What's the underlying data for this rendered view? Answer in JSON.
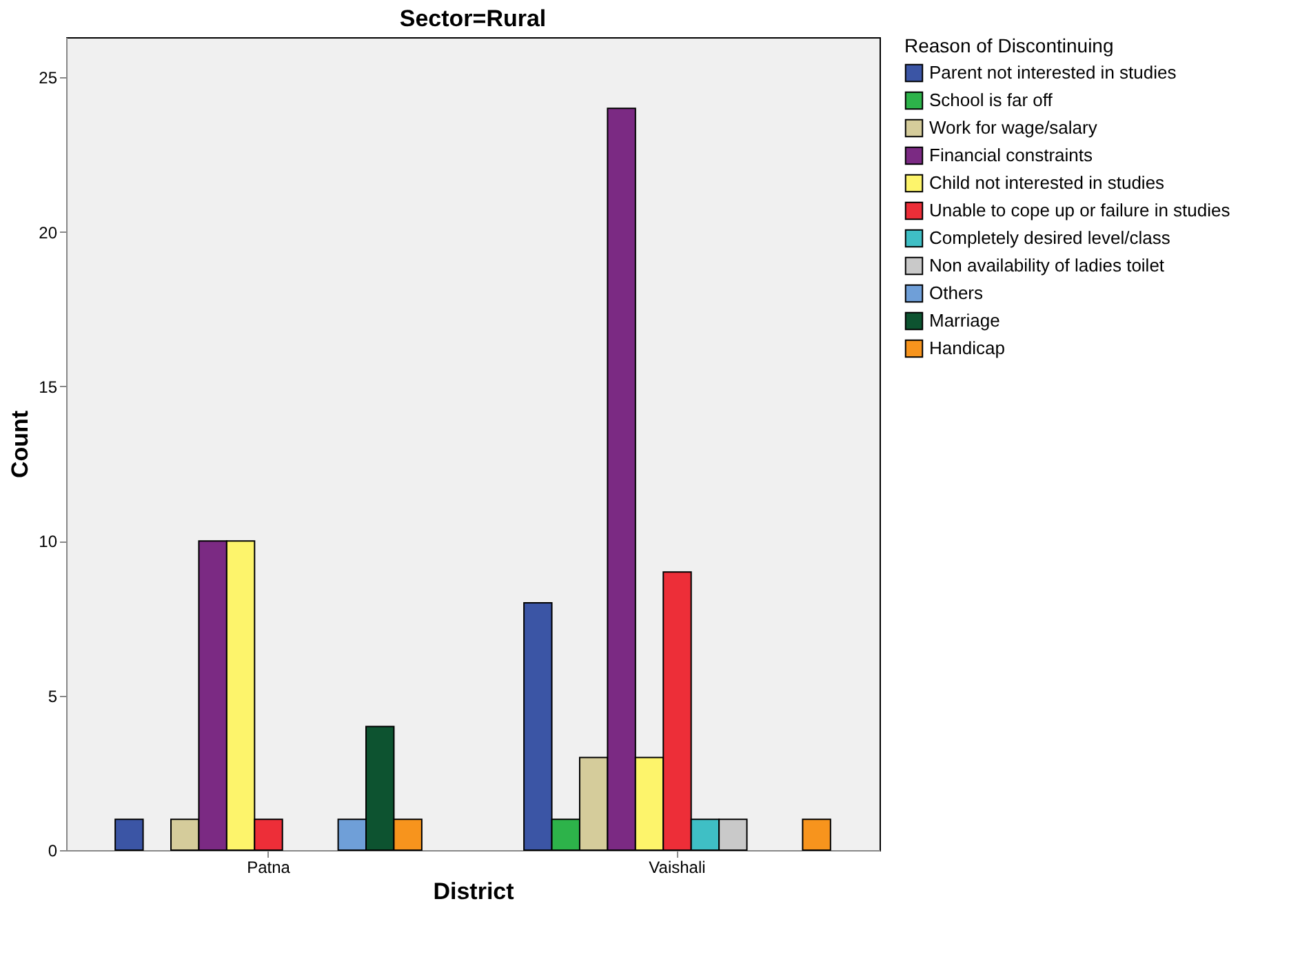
{
  "chart_data": {
    "type": "bar",
    "title": "Sector=Rural",
    "xlabel": "District",
    "ylabel": "Count",
    "legend_title": "Reason of Discontinuing",
    "legend": "right",
    "grid": false,
    "categories": [
      "Patna",
      "Vaishali"
    ],
    "ylim": [
      0,
      26.3
    ],
    "yticks": [
      0,
      5,
      10,
      15,
      20,
      25
    ],
    "series": [
      {
        "name": "Parent not interested in studies",
        "color": "#3b55a5",
        "values": [
          1,
          8
        ]
      },
      {
        "name": "School is far off",
        "color": "#2db34a",
        "values": [
          null,
          1
        ]
      },
      {
        "name": "Work for wage/salary",
        "color": "#d5cc9b",
        "values": [
          1,
          3
        ]
      },
      {
        "name": "Financial constraints",
        "color": "#7b2a83",
        "values": [
          10,
          24
        ]
      },
      {
        "name": "Child not interested in studies",
        "color": "#fdf46b",
        "values": [
          10,
          3
        ]
      },
      {
        "name": "Unable to cope up or failure in studies",
        "color": "#ed2e38",
        "values": [
          1,
          9
        ]
      },
      {
        "name": "Completely desired level/class",
        "color": "#3fbfc5",
        "values": [
          null,
          1
        ]
      },
      {
        "name": "Non availability of ladies toilet",
        "color": "#c9c9c9",
        "values": [
          null,
          1
        ]
      },
      {
        "name": "Others",
        "color": "#6f9fd8",
        "values": [
          1,
          null
        ]
      },
      {
        "name": "Marriage",
        "color": "#0d5330",
        "values": [
          4,
          null
        ]
      },
      {
        "name": "Handicap",
        "color": "#f7941d",
        "values": [
          1,
          1
        ]
      }
    ]
  }
}
